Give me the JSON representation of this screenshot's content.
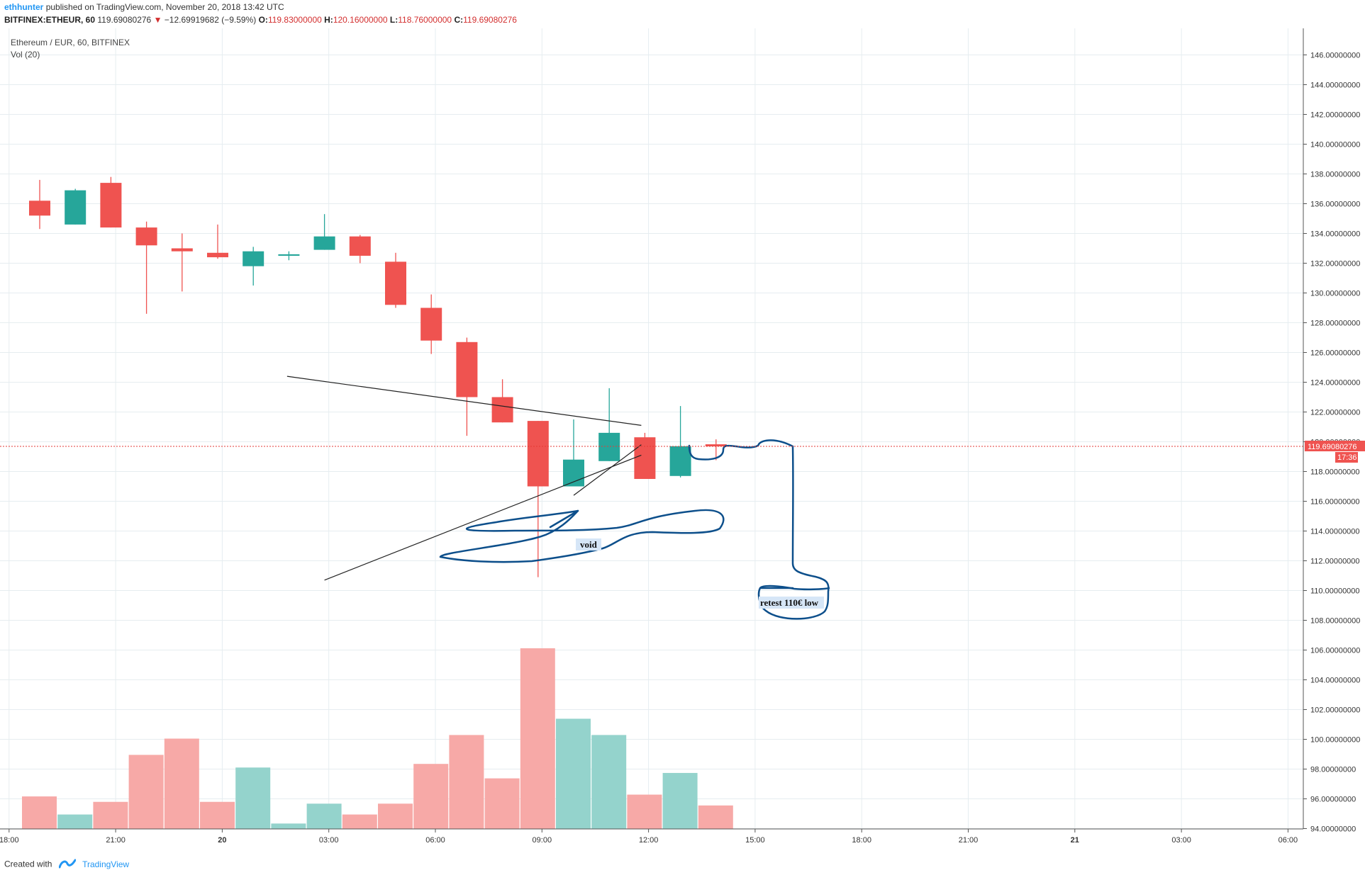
{
  "header": {
    "author": "ethhunter",
    "published": "published on TradingView.com, November 20, 2018 13:42 UTC",
    "symbol": "BITFINEX:ETHEUR, 60",
    "price": "119.69080276",
    "change_arrow": "▼",
    "change": "−12.69919682 (−9.59%)",
    "o_label": "O:",
    "o_value": "119.83000000",
    "h_label": "H:",
    "h_value": "120.16000000",
    "l_label": "L:",
    "l_value": "118.76000000",
    "c_label": "C:",
    "c_value": "119.69080276"
  },
  "legend": {
    "title": "Ethereum / EUR, 60, BITFINEX",
    "volume": "Vol (20)"
  },
  "current_price": {
    "label": "119.69080276",
    "countdown": "17:36",
    "value": 119.6908
  },
  "annotations": {
    "void": "void",
    "retest": "retest 110€ low"
  },
  "footer": {
    "created": "Created with",
    "brand": "TradingView"
  },
  "colors": {
    "up": "#26a69a",
    "down": "#ef5350",
    "vol_up": "#94d3cc",
    "vol_down": "#f7a9a7",
    "drawing": "#0d4f8b",
    "trend": "#222222",
    "grid": "#e6edf0"
  },
  "chart_data": {
    "type": "candlestick",
    "title": "Ethereum / EUR, 60, BITFINEX",
    "ylim": [
      94,
      147.5
    ],
    "y_ticks": [
      "146.00000000",
      "144.00000000",
      "142.00000000",
      "140.00000000",
      "138.00000000",
      "136.00000000",
      "134.00000000",
      "132.00000000",
      "130.00000000",
      "128.00000000",
      "126.00000000",
      "124.00000000",
      "122.00000000",
      "120.00000000",
      "118.00000000",
      "116.00000000",
      "114.00000000",
      "112.00000000",
      "110.00000000",
      "108.00000000",
      "106.00000000",
      "104.00000000",
      "102.00000000",
      "100.00000000",
      "98.00000000",
      "96.00000000",
      "94.00000000"
    ],
    "x_ticks": [
      "18:00",
      "21:00",
      "20",
      "03:00",
      "06:00",
      "09:00",
      "12:00",
      "15:00",
      "18:00",
      "21:00",
      "21",
      "03:00",
      "06:00"
    ],
    "candles": [
      {
        "t": 0,
        "o": 136.2,
        "h": 137.6,
        "l": 134.3,
        "c": 135.2
      },
      {
        "t": 1,
        "o": 134.6,
        "h": 137.0,
        "l": 134.6,
        "c": 136.9
      },
      {
        "t": 2,
        "o": 137.4,
        "h": 137.8,
        "l": 134.4,
        "c": 134.4
      },
      {
        "t": 3,
        "o": 134.4,
        "h": 134.8,
        "l": 128.6,
        "c": 133.2
      },
      {
        "t": 4,
        "o": 133.0,
        "h": 134.0,
        "l": 130.1,
        "c": 132.8
      },
      {
        "t": 5,
        "o": 132.7,
        "h": 134.6,
        "l": 132.3,
        "c": 132.4
      },
      {
        "t": 6,
        "o": 131.8,
        "h": 133.1,
        "l": 130.5,
        "c": 132.8
      },
      {
        "t": 7,
        "o": 132.5,
        "h": 132.8,
        "l": 132.2,
        "c": 132.6
      },
      {
        "t": 8,
        "o": 132.9,
        "h": 135.3,
        "l": 132.9,
        "c": 133.8
      },
      {
        "t": 9,
        "o": 133.8,
        "h": 133.9,
        "l": 132.0,
        "c": 132.5
      },
      {
        "t": 10,
        "o": 132.1,
        "h": 132.7,
        "l": 129.0,
        "c": 129.2
      },
      {
        "t": 11,
        "o": 129.0,
        "h": 129.9,
        "l": 125.9,
        "c": 126.8
      },
      {
        "t": 12,
        "o": 126.7,
        "h": 127.0,
        "l": 120.4,
        "c": 123.0
      },
      {
        "t": 13,
        "o": 123.0,
        "h": 124.2,
        "l": 121.3,
        "c": 121.3
      },
      {
        "t": 14,
        "o": 121.4,
        "h": 121.4,
        "l": 110.9,
        "c": 117.0
      },
      {
        "t": 15,
        "o": 117.0,
        "h": 121.5,
        "l": 117.0,
        "c": 118.8
      },
      {
        "t": 16,
        "o": 118.7,
        "h": 123.6,
        "l": 118.7,
        "c": 120.6
      },
      {
        "t": 17,
        "o": 120.3,
        "h": 120.6,
        "l": 117.5,
        "c": 117.5
      },
      {
        "t": 18,
        "o": 117.7,
        "h": 122.4,
        "l": 117.6,
        "c": 119.7
      },
      {
        "t": 19,
        "o": 119.83,
        "h": 120.16,
        "l": 118.76,
        "c": 119.69
      }
    ],
    "volume_relative": [
      0.18,
      0.08,
      0.15,
      0.41,
      0.5,
      0.15,
      0.34,
      0.03,
      0.14,
      0.08,
      0.14,
      0.36,
      0.52,
      0.28,
      1.0,
      0.61,
      0.52,
      0.19,
      0.31,
      0.13
    ],
    "volume_up": [
      false,
      true,
      false,
      false,
      false,
      false,
      true,
      true,
      true,
      false,
      false,
      false,
      false,
      false,
      false,
      true,
      true,
      false,
      true,
      false
    ],
    "trendlines": [
      {
        "from": [
          6.95,
          124.4
        ],
        "to": [
          16.9,
          121.1
        ]
      },
      {
        "from": [
          8.0,
          110.7
        ],
        "to": [
          16.9,
          119.1
        ]
      },
      {
        "from": [
          15.0,
          116.4
        ],
        "to": [
          16.9,
          119.8
        ]
      }
    ]
  }
}
